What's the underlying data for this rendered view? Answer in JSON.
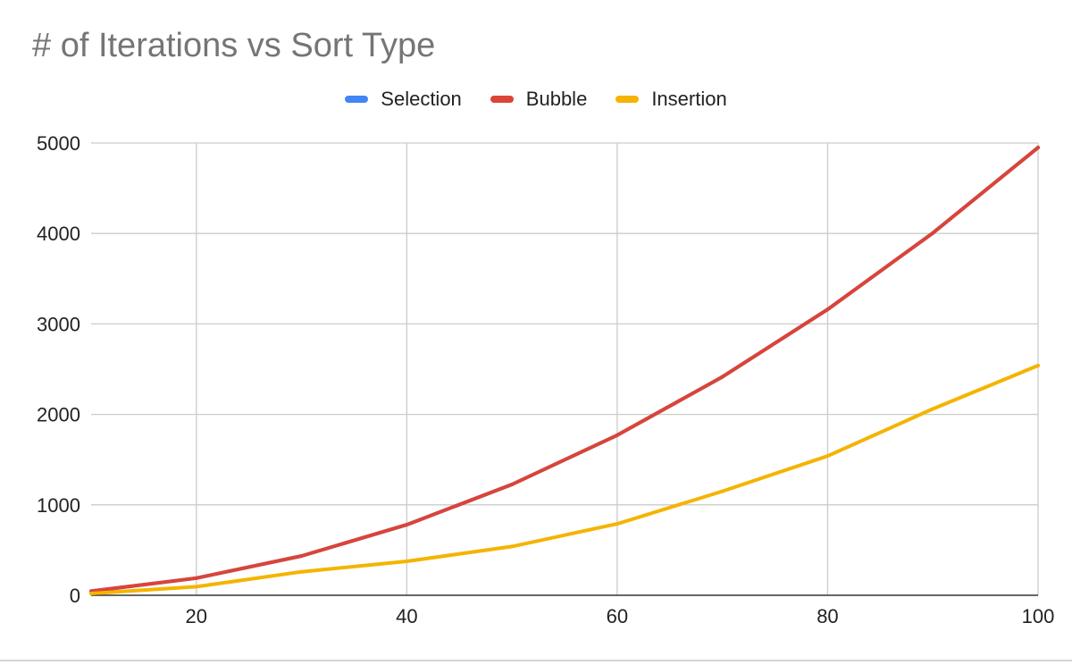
{
  "chart_data": {
    "type": "line",
    "title": "# of Iterations vs Sort Type",
    "xlabel": "",
    "ylabel": "",
    "xlim": [
      10,
      100
    ],
    "ylim": [
      0,
      5000
    ],
    "x": [
      10,
      20,
      30,
      40,
      50,
      60,
      70,
      80,
      90,
      100
    ],
    "x_ticks": [
      20,
      40,
      60,
      80,
      100
    ],
    "y_ticks": [
      0,
      1000,
      2000,
      3000,
      4000,
      5000
    ],
    "grid": true,
    "legend_position": "top",
    "series": [
      {
        "name": "Selection",
        "color": "#4285f4",
        "values": [
          45,
          190,
          435,
          780,
          1225,
          1770,
          2415,
          3160,
          4005,
          4950
        ]
      },
      {
        "name": "Bubble",
        "color": "#db4437",
        "values": [
          45,
          190,
          435,
          780,
          1225,
          1770,
          2415,
          3160,
          4005,
          4950
        ]
      },
      {
        "name": "Insertion",
        "color": "#f4b400",
        "values": [
          20,
          95,
          260,
          375,
          540,
          790,
          1150,
          1540,
          2060,
          2540
        ]
      }
    ]
  }
}
